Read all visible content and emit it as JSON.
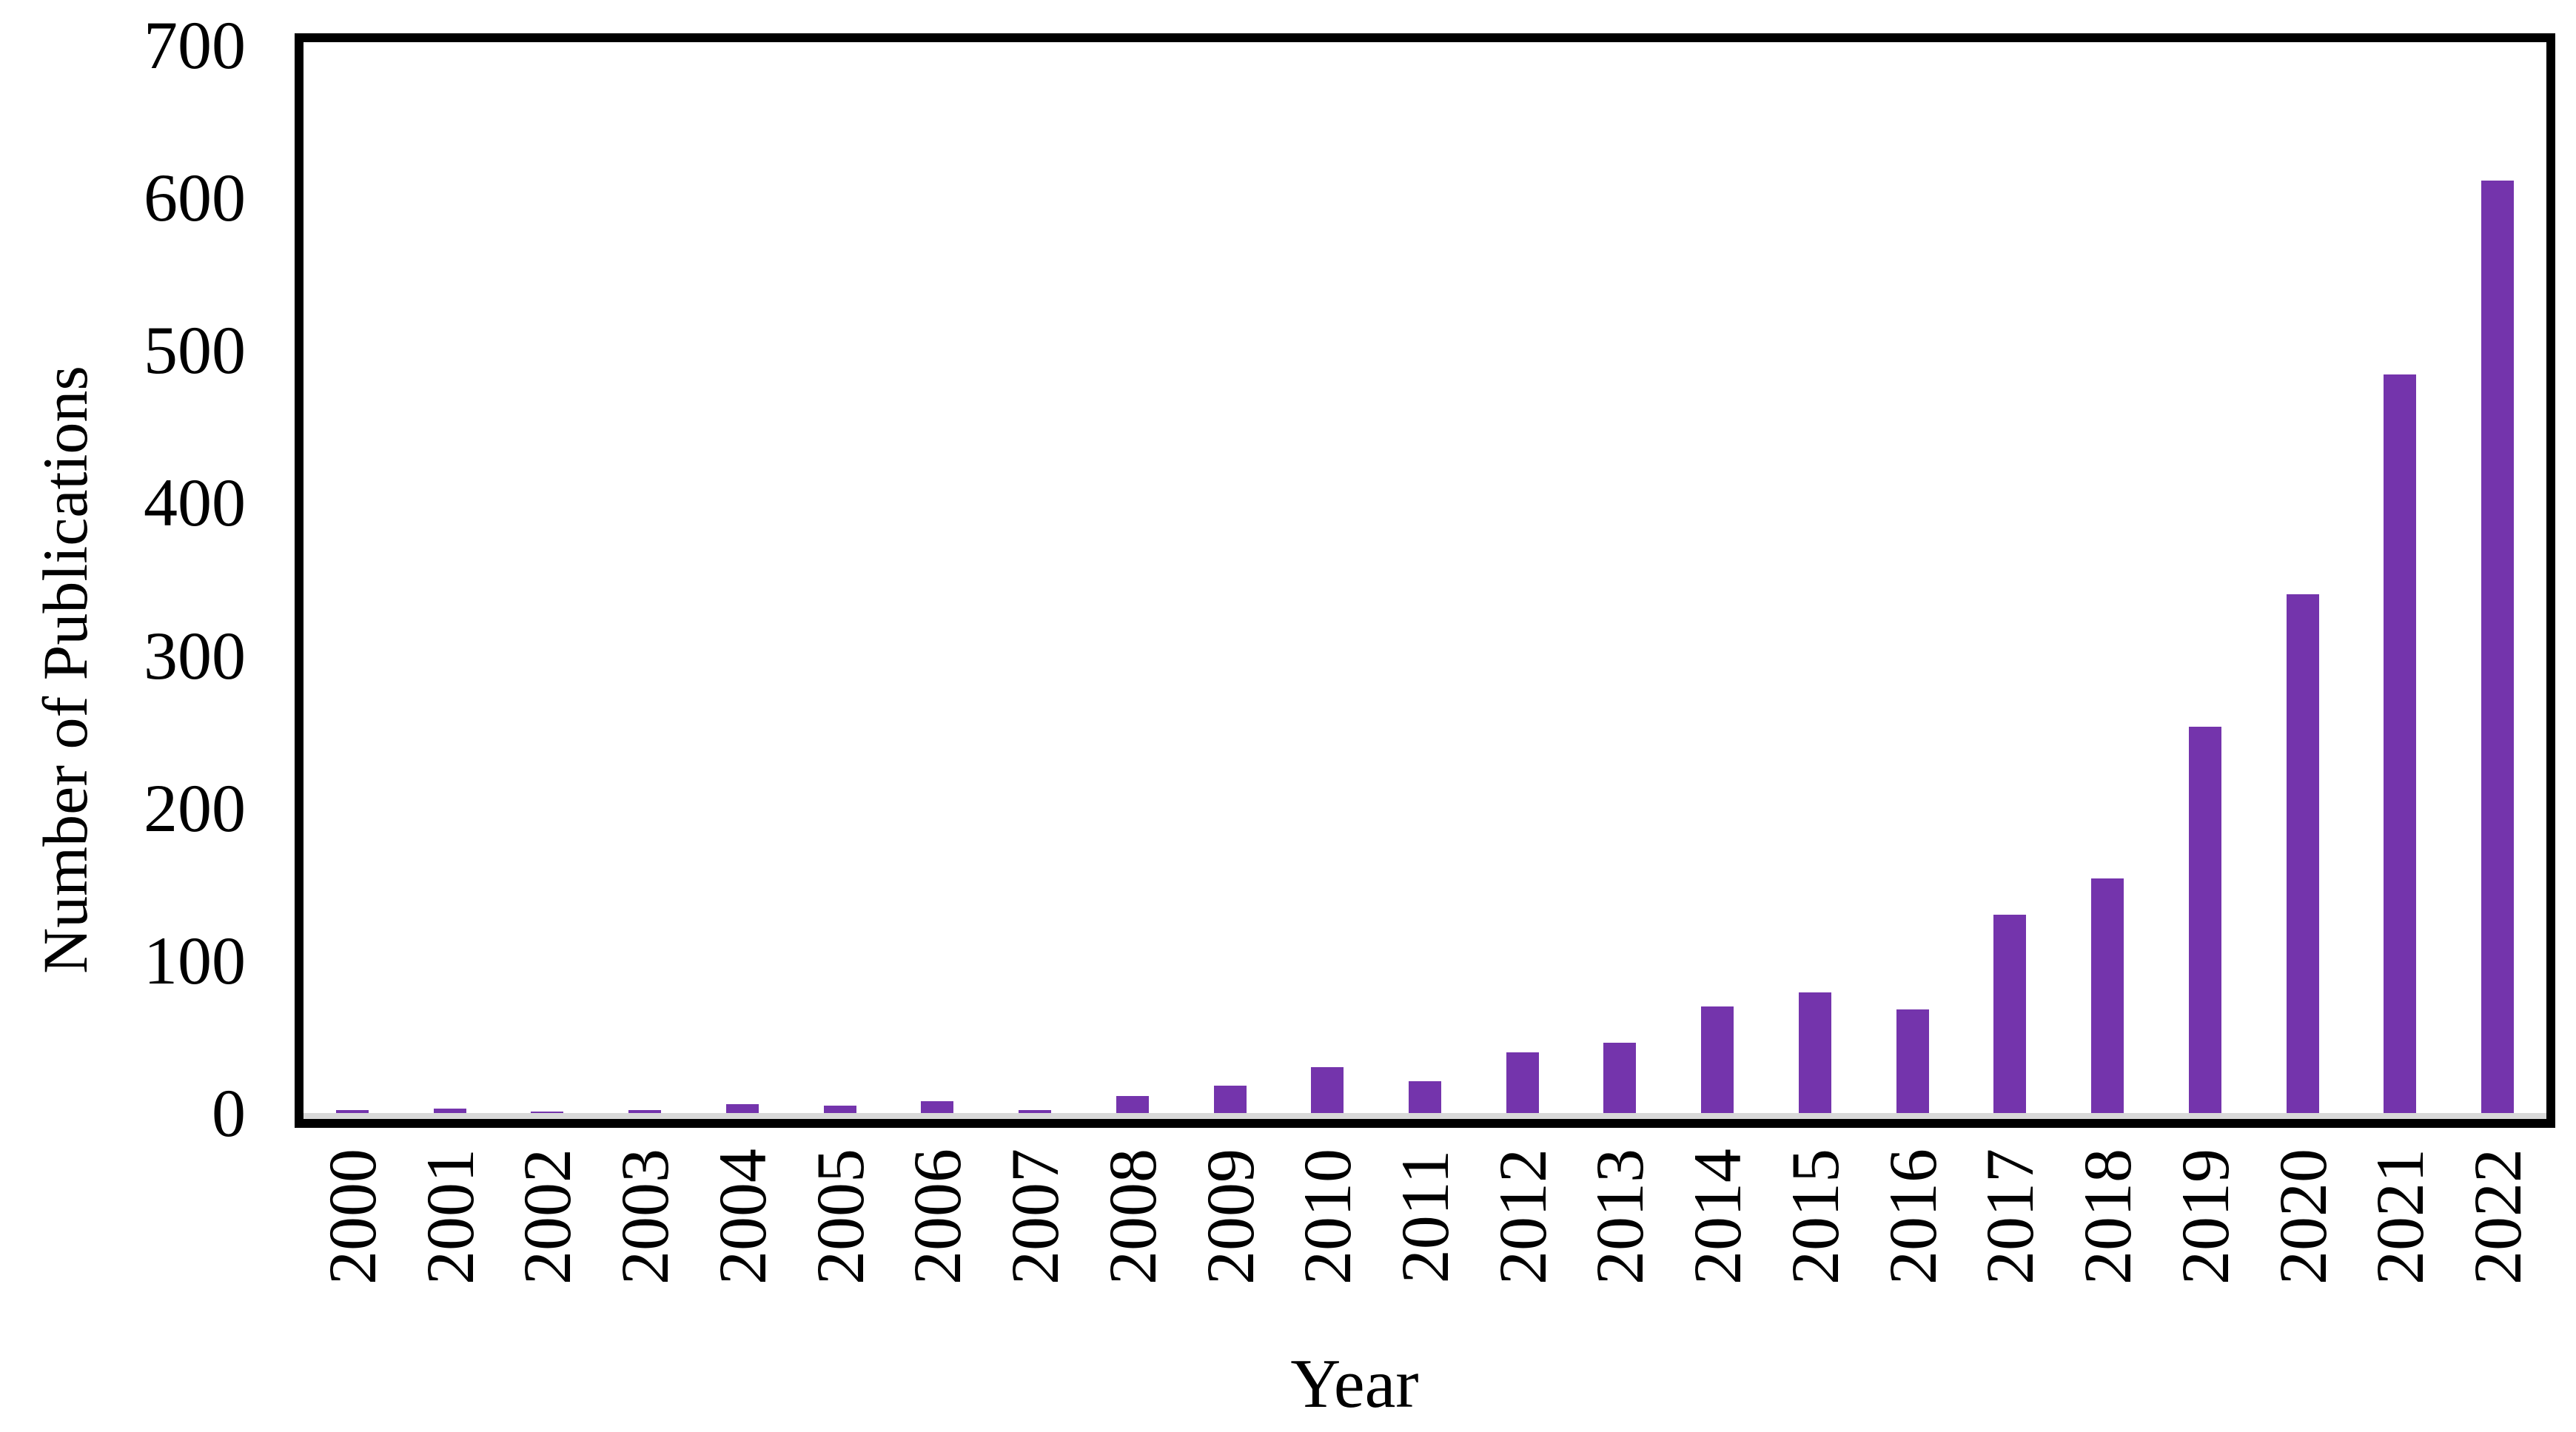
{
  "chart_data": {
    "type": "bar",
    "title": "",
    "xlabel": "Year",
    "ylabel": "Number of Publications",
    "categories": [
      "2000",
      "2001",
      "2002",
      "2003",
      "2004",
      "2005",
      "2006",
      "2007",
      "2008",
      "2009",
      "2010",
      "2011",
      "2012",
      "2013",
      "2014",
      "2015",
      "2016",
      "2017",
      "2018",
      "2019",
      "2020",
      "2021",
      "2022"
    ],
    "values": [
      2,
      3,
      1,
      2,
      6,
      5,
      8,
      2,
      11,
      18,
      30,
      21,
      40,
      46,
      70,
      79,
      68,
      130,
      154,
      253,
      340,
      484,
      611
    ],
    "ylim": [
      0,
      700
    ],
    "yticks": [
      0,
      100,
      200,
      300,
      400,
      500,
      600,
      700
    ],
    "grid": false,
    "legend": null,
    "colors": {
      "bar": "#7434ac",
      "plot_border": "#000000",
      "axis_line": "#d9d9d9",
      "text": "#000000",
      "background": "#ffffff"
    }
  }
}
